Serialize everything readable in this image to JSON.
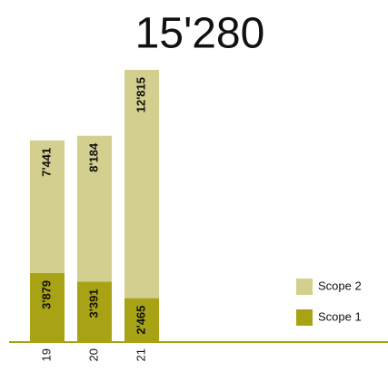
{
  "chart_data": {
    "type": "stacked_bar",
    "title": "15'280",
    "categories": [
      "19",
      "20",
      "21"
    ],
    "series": [
      {
        "name": "Scope 1",
        "color": "#a8a314",
        "values": [
          3879,
          3391,
          2465
        ],
        "value_labels": [
          "3'879",
          "3'391",
          "2'465"
        ]
      },
      {
        "name": "Scope 2",
        "color": "#d3cf8e",
        "values": [
          7441,
          8184,
          12815
        ],
        "value_labels": [
          "7'441",
          "8'184",
          "12'815"
        ]
      }
    ]
  }
}
